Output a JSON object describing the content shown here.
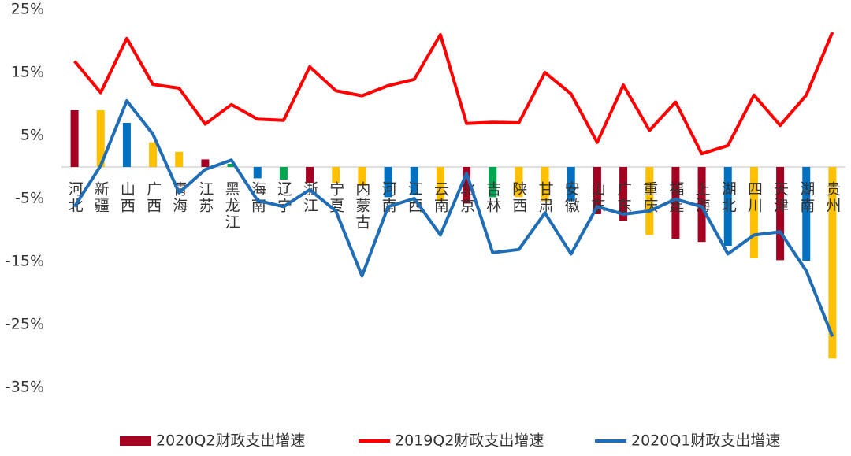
{
  "chart_data": {
    "type": "bar_line",
    "categories": [
      "河北",
      "新疆",
      "山西",
      "广西",
      "青海",
      "江苏",
      "黑龙江",
      "海南",
      "辽宁",
      "浙江",
      "宁夏",
      "内蒙古",
      "河南",
      "江西",
      "云南",
      "北京",
      "吉林",
      "陕西",
      "甘肃",
      "安徽",
      "山东",
      "广东",
      "重庆",
      "福建",
      "上海",
      "湖北",
      "四川",
      "天津",
      "湖南",
      "贵州"
    ],
    "series": [
      {
        "name": "2020Q2财政支出增速",
        "kind": "bar",
        "color": "#a50021",
        "colors": [
          "#a50021",
          "#ffc000",
          "#0070c0",
          "#ffc000",
          "#ffc000",
          "#a50021",
          "#00a550",
          "#0070c0",
          "#00a550",
          "#a50021",
          "#ffc000",
          "#ffc000",
          "#0070c0",
          "#0070c0",
          "#ffc000",
          "#a50021",
          "#00a550",
          "#ffc000",
          "#ffc000",
          "#0070c0",
          "#a50021",
          "#a50021",
          "#ffc000",
          "#a50021",
          "#a50021",
          "#0070c0",
          "#ffc000",
          "#a50021",
          "#0070c0",
          "#ffc000"
        ],
        "values": [
          9.0,
          9.0,
          7.0,
          3.9,
          2.4,
          1.2,
          0.5,
          -1.8,
          -2.0,
          -2.5,
          -2.5,
          -3.0,
          -4.8,
          -4.5,
          -5.4,
          -5.8,
          -4.8,
          -4.8,
          -5.4,
          -5.4,
          -7.5,
          -8.5,
          -10.8,
          -11.4,
          -11.9,
          -12.5,
          -14.5,
          -14.8,
          -14.9,
          -30.4
        ]
      },
      {
        "name": "2019Q2财政支出增速",
        "kind": "line",
        "color": "#ff0000",
        "values": [
          16.8,
          11.8,
          20.4,
          13.1,
          12.5,
          6.8,
          9.9,
          7.6,
          7.4,
          15.9,
          12.1,
          11.3,
          12.9,
          13.9,
          21.0,
          6.9,
          7.1,
          7.0,
          15.0,
          11.6,
          3.9,
          13.0,
          5.8,
          10.3,
          2.1,
          3.4,
          11.4,
          6.6,
          11.4,
          21.4
        ]
      },
      {
        "name": "2020Q1财政支出增速",
        "kind": "line",
        "color": "#1f6db5",
        "values": [
          -6.3,
          0.2,
          10.5,
          5.2,
          -4.1,
          -0.4,
          1.1,
          -5.3,
          -6.3,
          -3.6,
          -7.0,
          -17.3,
          -6.3,
          -5.0,
          -10.8,
          -1.0,
          -13.6,
          -13.1,
          -7.3,
          -13.8,
          -6.3,
          -7.5,
          -7.0,
          -5.1,
          -6.3,
          -13.8,
          -10.8,
          -10.3,
          -16.5,
          -26.9
        ]
      }
    ],
    "ylim": [
      -35,
      25
    ],
    "yticks": [
      {
        "value": 25,
        "label": "25%"
      },
      {
        "value": 15,
        "label": "15%"
      },
      {
        "value": 5,
        "label": "5%"
      },
      {
        "value": -5,
        "label": "-5%"
      },
      {
        "value": -15,
        "label": "-15%"
      },
      {
        "value": -25,
        "label": "-25%"
      },
      {
        "value": -35,
        "label": "-35%"
      }
    ],
    "grid": false
  }
}
